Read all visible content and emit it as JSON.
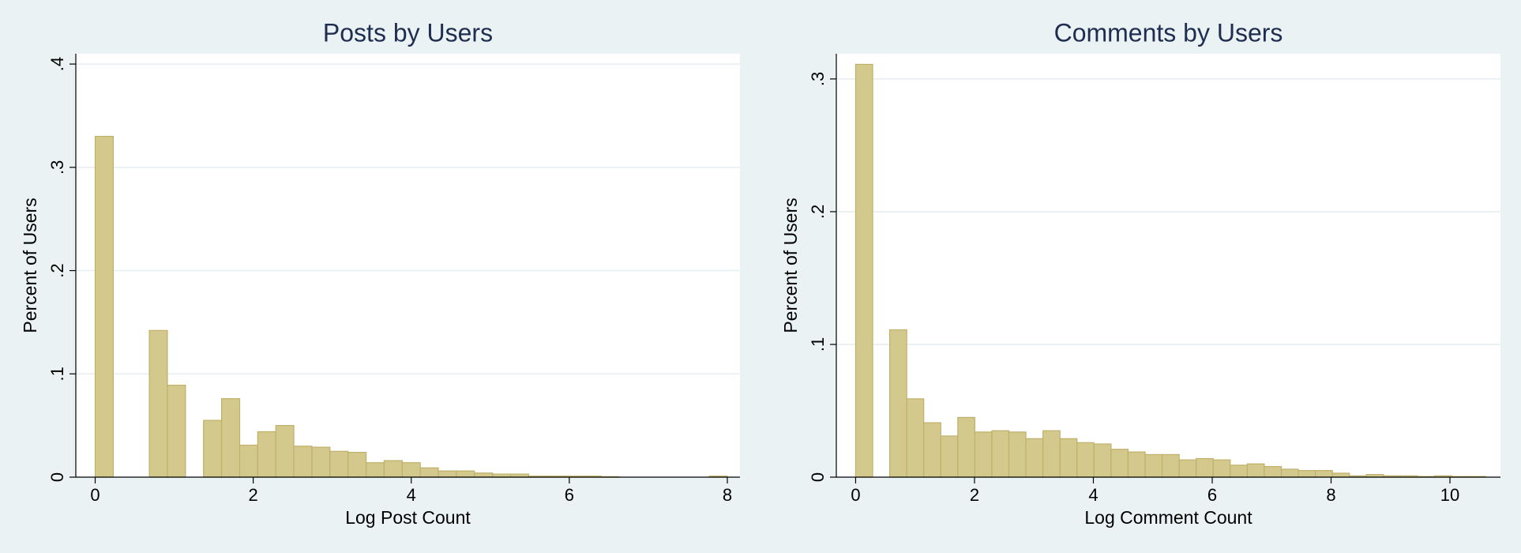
{
  "chart_data": [
    {
      "type": "histogram",
      "title": "Posts by Users",
      "x_label": "Log Post Count",
      "y_label": "Percent of Users",
      "bins": [
        0,
        0.229,
        0.457,
        0.686,
        0.914,
        1.143,
        1.371,
        1.6,
        1.829,
        2.057,
        2.286,
        2.514,
        2.743,
        2.971,
        3.2,
        3.429,
        3.657,
        3.886,
        4.114,
        4.343,
        4.571,
        4.8,
        5.029,
        5.257,
        5.486,
        5.714,
        5.943,
        6.171,
        6.4,
        6.629,
        6.857,
        7.086,
        7.314,
        7.543,
        7.771,
        8
      ],
      "values": [
        0.33,
        0,
        0,
        0.142,
        0.089,
        0,
        0.055,
        0.076,
        0.031,
        0.044,
        0.05,
        0.03,
        0.029,
        0.025,
        0.024,
        0.014,
        0.016,
        0.014,
        0.009,
        0.006,
        0.006,
        0.004,
        0.003,
        0.003,
        0.001,
        0.001,
        0.001,
        0.001,
        0.0005,
        0,
        0,
        0,
        0,
        0,
        0.001
      ],
      "color": "#d4c98c",
      "edge_color": "#bfb06a",
      "xlim": [
        -0.245,
        8.16
      ],
      "xticks": [
        0,
        2,
        4,
        6,
        8
      ],
      "ylim": [
        0,
        0.41
      ],
      "yticks": [
        0,
        {
          "value": 0.1,
          "label": ".1"
        },
        {
          "value": 0.2,
          "label": ".2"
        },
        {
          "value": 0.3,
          "label": ".3"
        },
        {
          "value": 0.4,
          "label": ".4"
        }
      ],
      "grid": true
    },
    {
      "type": "histogram",
      "title": "Comments by Users",
      "x_label": "Log Comment Count",
      "y_label": "Percent of Users",
      "bins": [
        0,
        0.287,
        0.573,
        0.86,
        1.146,
        1.433,
        1.719,
        2.006,
        2.292,
        2.579,
        2.865,
        3.152,
        3.438,
        3.725,
        4.011,
        4.298,
        4.584,
        4.871,
        5.157,
        5.444,
        5.73,
        6.017,
        6.303,
        6.59,
        6.876,
        7.163,
        7.449,
        7.736,
        8.022,
        8.309,
        8.595,
        8.882,
        9.168,
        9.455,
        9.741,
        10.028,
        10.314,
        10.601
      ],
      "values": [
        0.311,
        0,
        0.111,
        0.059,
        0.041,
        0.031,
        0.045,
        0.034,
        0.035,
        0.034,
        0.029,
        0.035,
        0.029,
        0.026,
        0.025,
        0.021,
        0.019,
        0.017,
        0.017,
        0.013,
        0.014,
        0.013,
        0.009,
        0.01,
        0.008,
        0.006,
        0.005,
        0.005,
        0.003,
        0.001,
        0.002,
        0.001,
        0.001,
        0.0005,
        0.001,
        0.0005,
        0.0005
      ],
      "color": "#d4c98c",
      "edge_color": "#bfb06a",
      "xlim": [
        -0.325,
        10.85
      ],
      "xticks": [
        0,
        2,
        4,
        6,
        8,
        10
      ],
      "ylim": [
        0,
        0.319
      ],
      "yticks": [
        0,
        {
          "value": 0.1,
          "label": ".1"
        },
        {
          "value": 0.2,
          "label": ".2"
        },
        {
          "value": 0.3,
          "label": ".3"
        }
      ],
      "grid": true
    }
  ]
}
